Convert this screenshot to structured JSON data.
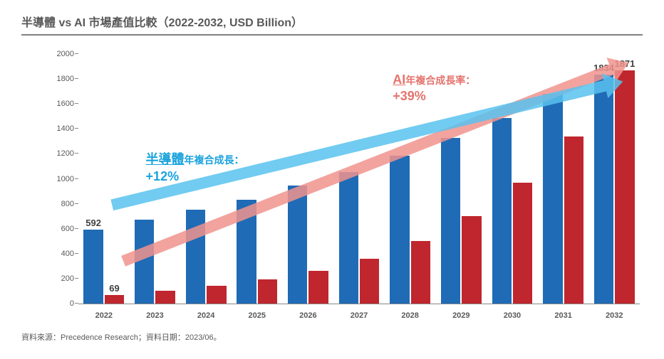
{
  "title": "半導體 vs AI 市場產值比較（2022-2032, USD Billion）",
  "chart": {
    "type": "bar",
    "categories": [
      "2022",
      "2023",
      "2024",
      "2025",
      "2026",
      "2027",
      "2028",
      "2029",
      "2030",
      "2031",
      "2032"
    ],
    "series": [
      {
        "name": "半導體",
        "color": "#1f6bb6",
        "values": [
          592,
          670,
          750,
          830,
          945,
          1055,
          1185,
          1330,
          1490,
          1680,
          1834
        ]
      },
      {
        "name": "AI",
        "color": "#c0262d",
        "values": [
          69,
          100,
          140,
          195,
          265,
          360,
          500,
          700,
          970,
          1340,
          1871
        ]
      }
    ],
    "ymin": 0,
    "ymax": 2000,
    "ytick_step": 200,
    "background_color": "#ffffff",
    "axis_color": "#888888",
    "tick_font_size": 11,
    "xlabel_font_size": 11,
    "bar_group_gap_pct": 12,
    "value_labels": [
      {
        "series": 0,
        "index": 0,
        "text": "592"
      },
      {
        "series": 1,
        "index": 0,
        "text": "69"
      },
      {
        "series": 0,
        "index": 10,
        "text": "1834"
      },
      {
        "series": 1,
        "index": 10,
        "text": "1871"
      }
    ]
  },
  "arrows": {
    "semi": {
      "color": "#59c2ee",
      "opacity": 0.85,
      "width": 16,
      "x1_pct": 6,
      "y1_val": 790,
      "x2_pct": 97,
      "y2_val": 1780
    },
    "ai": {
      "color": "#f0938d",
      "opacity": 0.85,
      "width": 16,
      "x1_pct": 8,
      "y1_val": 340,
      "x2_pct": 98,
      "y2_val": 1930
    }
  },
  "annotations": {
    "semi": {
      "l1_big": "半導體",
      "l1_small": "年複合成長：",
      "l2": "+12%",
      "color": "#1aa3dd",
      "left_pct": 12,
      "top_val": 1220
    },
    "ai": {
      "l1_big": "AI",
      "l1_small": "年複合成長率：",
      "l2": "+39%",
      "color": "#e4736d",
      "left_pct": 56,
      "top_val": 1860
    }
  },
  "source": "資料來源：Precedence Research；資料日期：2023/06。"
}
